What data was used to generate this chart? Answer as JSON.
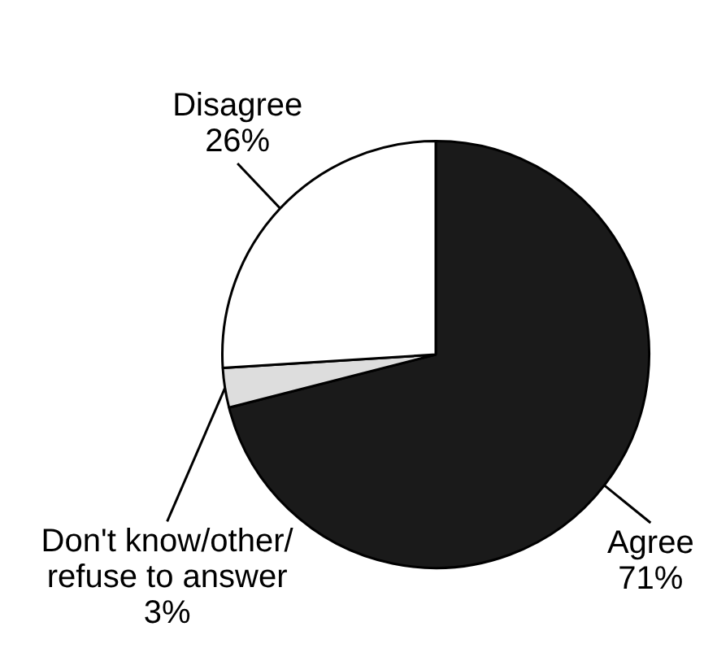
{
  "chart_data": {
    "type": "pie",
    "categories": [
      "Agree",
      "Don't know/other/refuse to answer",
      "Disagree"
    ],
    "values": [
      71,
      3,
      26
    ],
    "colors": [
      "#1a1a1a",
      "#dddddd",
      "#ffffff"
    ],
    "value_labels": [
      "71%",
      "3%",
      "26%"
    ]
  }
}
